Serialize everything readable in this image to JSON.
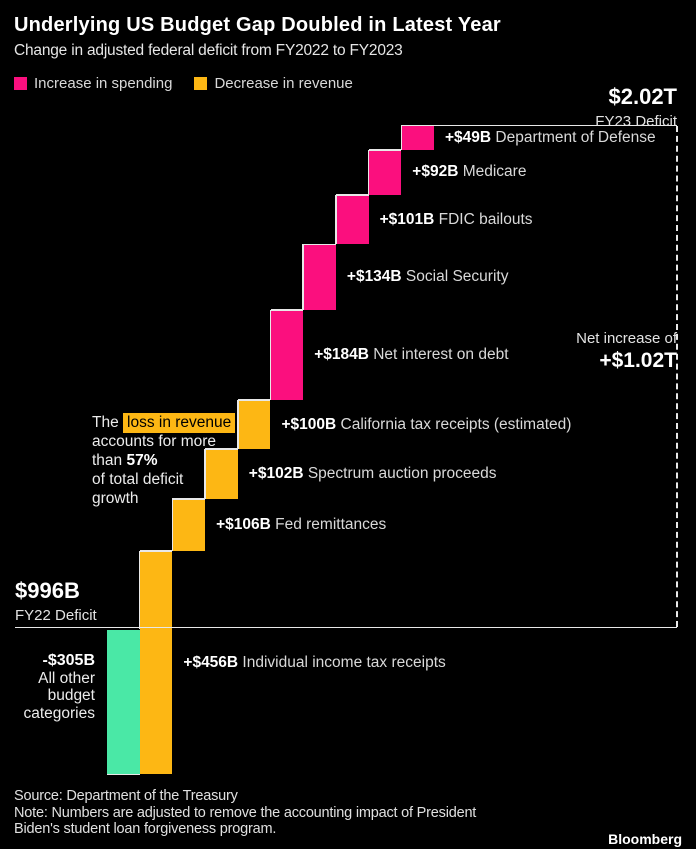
{
  "header": {
    "title": "Underlying US Budget Gap Doubled in Latest Year",
    "subtitle": "Change in adjusted federal deficit from FY2022 to FY2023"
  },
  "chart_data": {
    "type": "waterfall",
    "unit": "US dollars, billions",
    "start": {
      "value_label": "$996B",
      "caption": "FY22 Deficit",
      "value": 996
    },
    "end": {
      "value_label": "$2.02T",
      "caption": "FY23 Deficit",
      "value": 2020
    },
    "net": {
      "caption": "Net increase of",
      "value_label": "+$1.02T",
      "value": 1019
    },
    "legend": [
      {
        "label": "Increase in spending",
        "type": "spending"
      },
      {
        "label": "Decrease in revenue",
        "type": "revenue"
      }
    ],
    "colors": {
      "spending": "#fb0f7e",
      "revenue": "#fdb714",
      "other": "#4ae8a6",
      "line": "#e8e8e8",
      "background": "#000000"
    },
    "steps": [
      {
        "label": "+$49B",
        "name": "Department of Defense",
        "value": 49,
        "type": "spending"
      },
      {
        "label": "+$92B",
        "name": "Medicare",
        "value": 92,
        "type": "spending"
      },
      {
        "label": "+$101B",
        "name": "FDIC bailouts",
        "value": 101,
        "type": "spending"
      },
      {
        "label": "+$134B",
        "name": "Social Security",
        "value": 134,
        "type": "spending"
      },
      {
        "label": "+$184B",
        "name": "Net interest on debt",
        "value": 184,
        "type": "spending"
      },
      {
        "label": "+$100B",
        "name": "California tax receipts (estimated)",
        "value": 100,
        "type": "revenue"
      },
      {
        "label": "+$102B",
        "name": "Spectrum auction proceeds",
        "value": 102,
        "type": "revenue"
      },
      {
        "label": "+$106B",
        "name": "Fed remittances",
        "value": 106,
        "type": "revenue"
      },
      {
        "label": "+$456B",
        "name": "Individual income tax receipts",
        "value": 456,
        "type": "revenue"
      },
      {
        "label": "-$305B",
        "name": "All other budget categories",
        "value": -305,
        "type": "other",
        "label_lines": [
          "All other",
          "budget",
          "categories"
        ]
      }
    ],
    "annotation": {
      "pre": "The ",
      "highlight": "loss in revenue",
      "line2": "accounts for more",
      "line3_pre": "than ",
      "line3_bold": "57%",
      "line4": "of total deficit",
      "line5": "growth"
    }
  },
  "footer": {
    "source": "Source: Department of the Treasury",
    "note_line1": "Note: Numbers are adjusted to remove the accounting impact of President",
    "note_line2": "Biden's student loan forgiveness program.",
    "logo": "Bloomberg"
  }
}
